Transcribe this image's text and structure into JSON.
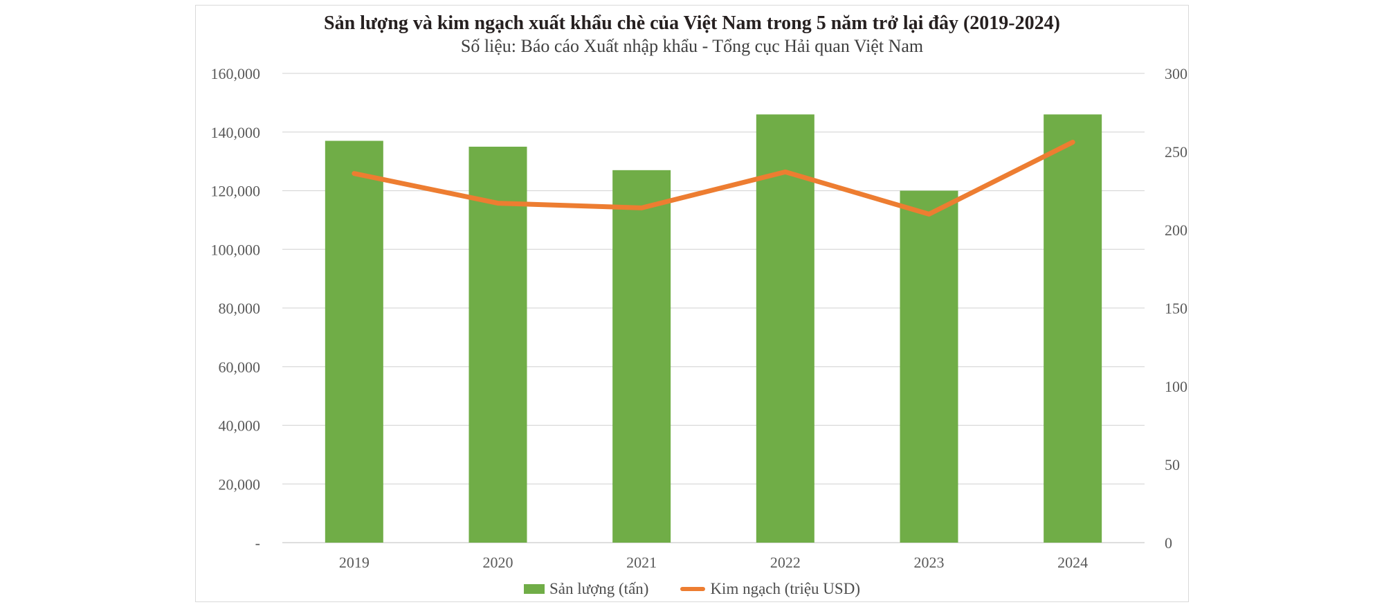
{
  "page": {
    "background": "#ffffff"
  },
  "card": {
    "background": "#ffffff",
    "border_color": "#d9d9d9"
  },
  "chart_data": {
    "type": "combo-bar-line",
    "title": "Sản lượng và kim ngạch xuất khẩu chè của Việt Nam trong 5 năm trở lại đây (2019-2024)",
    "subtitle": "Số liệu: Báo cáo Xuất nhập khẩu - Tổng cục Hải quan Việt Nam",
    "categories": [
      "2019",
      "2020",
      "2021",
      "2022",
      "2023",
      "2024"
    ],
    "series": [
      {
        "name": "Sản lượng (tấn)",
        "type": "bar",
        "axis": "left",
        "color": "#70AD47",
        "values": [
          137000,
          135000,
          127000,
          146000,
          120000,
          146000
        ]
      },
      {
        "name": "Kim ngạch (triệu USD)",
        "type": "line",
        "axis": "right",
        "color": "#ED7D31",
        "values": [
          236,
          217,
          214,
          237,
          210,
          256
        ]
      }
    ],
    "axes": {
      "left": {
        "min": 0,
        "max": 160000,
        "step": 20000,
        "tick_labels": [
          "-",
          "20,000",
          "40,000",
          "60,000",
          "80,000",
          "100,000",
          "120,000",
          "140,000",
          "160,000"
        ]
      },
      "right": {
        "min": 0,
        "max": 300,
        "step": 50,
        "tick_labels": [
          "0",
          "50",
          "100",
          "150",
          "200",
          "250",
          "300"
        ]
      }
    },
    "grid": true,
    "legend_position": "bottom",
    "colors": {
      "grid_line": "#d9d9d9",
      "zero_line": "#c9c9c9",
      "axis_text": "#595959",
      "title_text": "#262020",
      "subtitle_text": "#3f3f3f",
      "legend_text": "#4d4d4d"
    }
  }
}
